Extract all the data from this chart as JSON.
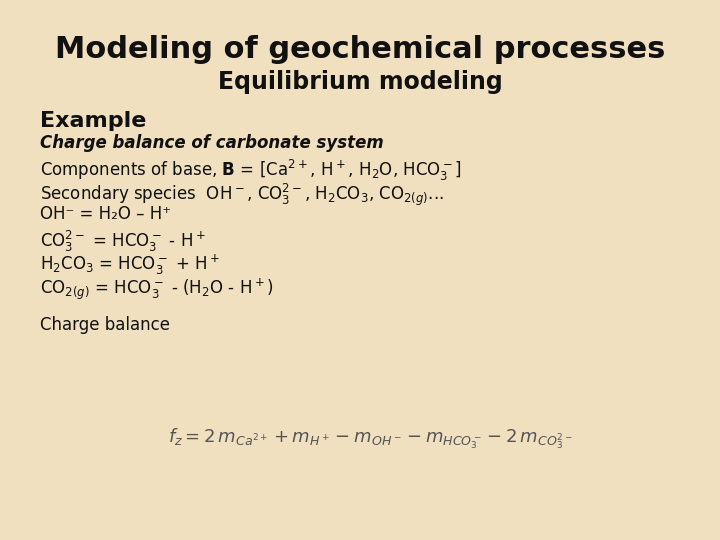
{
  "bg_color": "#f0e0c0",
  "title_line1": "Modeling of geochemical processes",
  "title_line2": "Equilibrium modeling",
  "title_fontsize": 22,
  "subtitle_fontsize": 17,
  "example_label": "Example",
  "example_fontsize": 16,
  "body_fontsize": 12,
  "formula_box_color": "#b8f0f0",
  "text_color": "#111111"
}
